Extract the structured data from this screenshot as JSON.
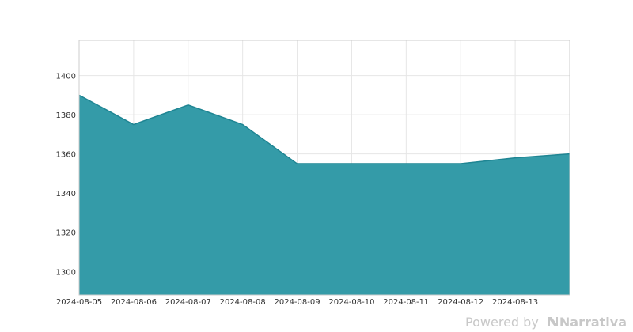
{
  "chart_data": {
    "type": "area",
    "x": [
      "2024-08-05",
      "2024-08-06",
      "2024-08-07",
      "2024-08-08",
      "2024-08-09",
      "2024-08-10",
      "2024-08-11",
      "2024-08-12",
      "2024-08-13",
      "2024-08-14"
    ],
    "y": [
      1390,
      1375,
      1385,
      1375,
      1355,
      1355,
      1355,
      1355,
      1358,
      1360
    ],
    "xtick_labels": [
      "2024-08-05",
      "2024-08-06",
      "2024-08-07",
      "2024-08-08",
      "2024-08-09",
      "2024-08-10",
      "2024-08-11",
      "2024-08-12",
      "2024-08-13"
    ],
    "yticks": [
      1300,
      1320,
      1340,
      1360,
      1380,
      1400
    ],
    "ylim": [
      1288,
      1418
    ],
    "grid": true,
    "title": "",
    "xlabel": "",
    "ylabel": ""
  },
  "colors": {
    "area_fill": "#349ba8",
    "area_line": "#1f8593",
    "grid": "#e6e6e6",
    "axis_frame": "#cccccc"
  },
  "credit": {
    "powered_by": "Powered by",
    "brand": "Narrativa"
  }
}
